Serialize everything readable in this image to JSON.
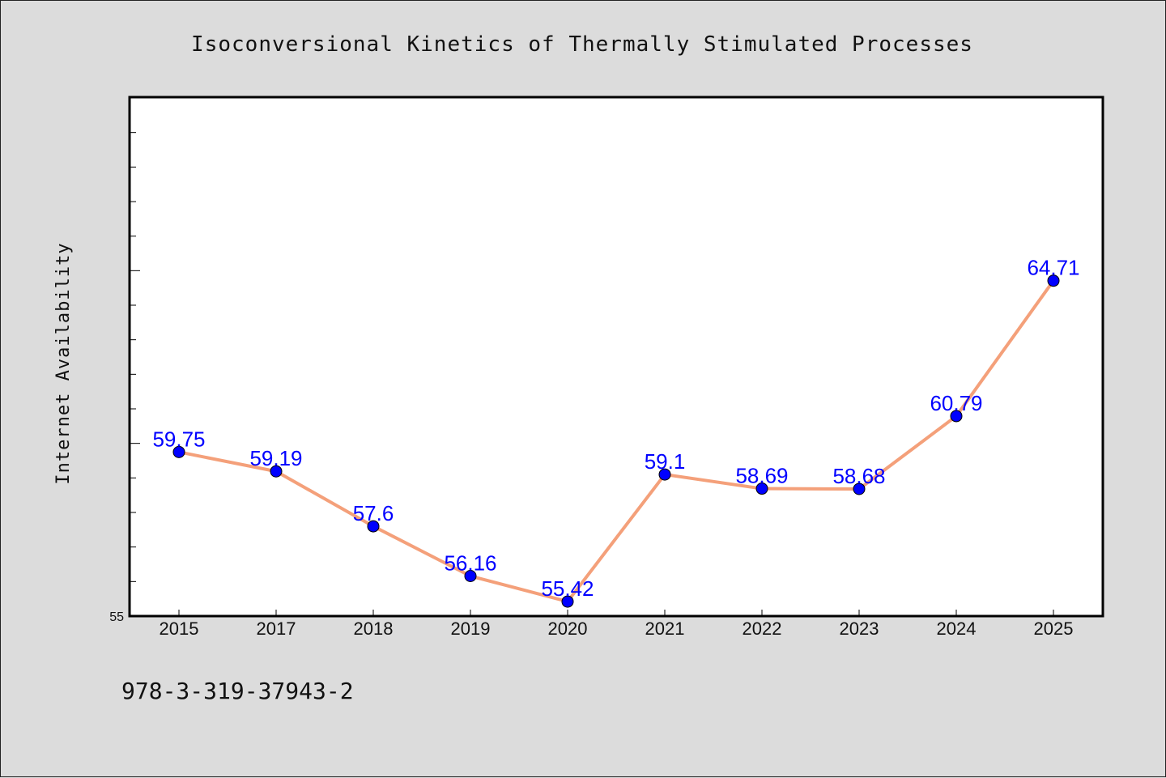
{
  "chart_data": {
    "type": "line",
    "title": "Isoconversional Kinetics of Thermally Stimulated Processes",
    "xlabel": "",
    "ylabel": "Internet Availability",
    "categories": [
      "2015",
      "2017",
      "2018",
      "2019",
      "2020",
      "2021",
      "2022",
      "2023",
      "2024",
      "2025"
    ],
    "series": [
      {
        "values": [
          59.75,
          59.19,
          57.6,
          56.16,
          55.42,
          59.1,
          58.69,
          58.68,
          60.79,
          64.71
        ],
        "labels": [
          "59.75",
          "59.19",
          "57.6",
          "56.16",
          "55.42",
          "59.1",
          "58.69",
          "58.68",
          "60.79",
          "64.71"
        ],
        "line_color": "#f4a07a",
        "marker_color": "#0000ff"
      }
    ],
    "ylim": [
      55,
      70
    ],
    "yticks": [
      "55"
    ],
    "grid": false,
    "legend": "none"
  },
  "footer": {
    "isbn": "978-3-319-37943-2"
  },
  "colors": {
    "background": "#dcdcdc",
    "plot_background": "#ffffff",
    "line": "#f4a07a",
    "marker": "#0000ff",
    "data_label": "#0000ff"
  }
}
